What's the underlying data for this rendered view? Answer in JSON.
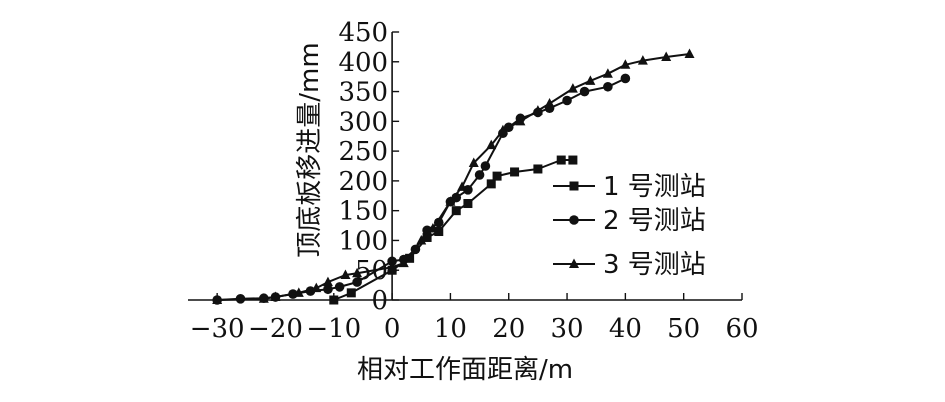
{
  "chart_data": {
    "type": "line",
    "xlabel": "相对工作面距离/m",
    "ylabel": "顶底板移进量/mm",
    "xlim": [
      -35,
      60
    ],
    "ylim": [
      0,
      450
    ],
    "x_ticks": [
      -30,
      -20,
      -10,
      0,
      10,
      20,
      30,
      40,
      50,
      60
    ],
    "x_tick_labels": [
      "−30",
      "−20",
      "−10",
      "0",
      "10",
      "20",
      "30",
      "40",
      "50",
      "60"
    ],
    "y_ticks": [
      0,
      50,
      100,
      150,
      200,
      250,
      300,
      350,
      400,
      450
    ],
    "y_tick_labels": [
      "0",
      "50",
      "100",
      "150",
      "200",
      "250",
      "300",
      "350",
      "400",
      "450"
    ],
    "grid": false,
    "legend_position": "right",
    "series": [
      {
        "name": "1 号测站",
        "marker": "square",
        "points": [
          [
            -10,
            0
          ],
          [
            -7,
            12
          ],
          [
            0,
            50
          ],
          [
            3,
            70
          ],
          [
            6,
            105
          ],
          [
            8,
            115
          ],
          [
            11,
            150
          ],
          [
            13,
            162
          ],
          [
            17,
            195
          ],
          [
            18,
            208
          ],
          [
            21,
            215
          ],
          [
            25,
            220
          ],
          [
            29,
            235
          ],
          [
            31,
            235
          ]
        ]
      },
      {
        "name": "2 号测站",
        "marker": "circle",
        "points": [
          [
            -30,
            0
          ],
          [
            -26,
            2
          ],
          [
            -22,
            3
          ],
          [
            -20,
            5
          ],
          [
            -17,
            10
          ],
          [
            -14,
            15
          ],
          [
            -11,
            18
          ],
          [
            -9,
            22
          ],
          [
            -6,
            30
          ],
          [
            0,
            65
          ],
          [
            2,
            68
          ],
          [
            4,
            85
          ],
          [
            6,
            117
          ],
          [
            8,
            130
          ],
          [
            10,
            165
          ],
          [
            11,
            172
          ],
          [
            13,
            185
          ],
          [
            15,
            210
          ],
          [
            16,
            225
          ],
          [
            19,
            280
          ],
          [
            20,
            290
          ],
          [
            22,
            305
          ],
          [
            25,
            315
          ],
          [
            27,
            322
          ],
          [
            30,
            335
          ],
          [
            33,
            350
          ],
          [
            37,
            358
          ],
          [
            40,
            372
          ]
        ]
      },
      {
        "name": "3 号测站",
        "marker": "triangle",
        "points": [
          [
            -30,
            0
          ],
          [
            -22,
            2
          ],
          [
            -20,
            5
          ],
          [
            -16,
            12
          ],
          [
            -13,
            20
          ],
          [
            -11,
            30
          ],
          [
            -8,
            42
          ],
          [
            -6,
            45
          ],
          [
            0,
            55
          ],
          [
            2,
            62
          ],
          [
            5,
            100
          ],
          [
            7,
            120
          ],
          [
            10,
            165
          ],
          [
            12,
            190
          ],
          [
            14,
            230
          ],
          [
            17,
            260
          ],
          [
            19,
            285
          ],
          [
            22,
            300
          ],
          [
            25,
            318
          ],
          [
            27,
            330
          ],
          [
            31,
            355
          ],
          [
            34,
            368
          ],
          [
            37,
            380
          ],
          [
            40,
            395
          ],
          [
            43,
            402
          ],
          [
            47,
            408
          ],
          [
            51,
            413
          ]
        ]
      }
    ]
  }
}
